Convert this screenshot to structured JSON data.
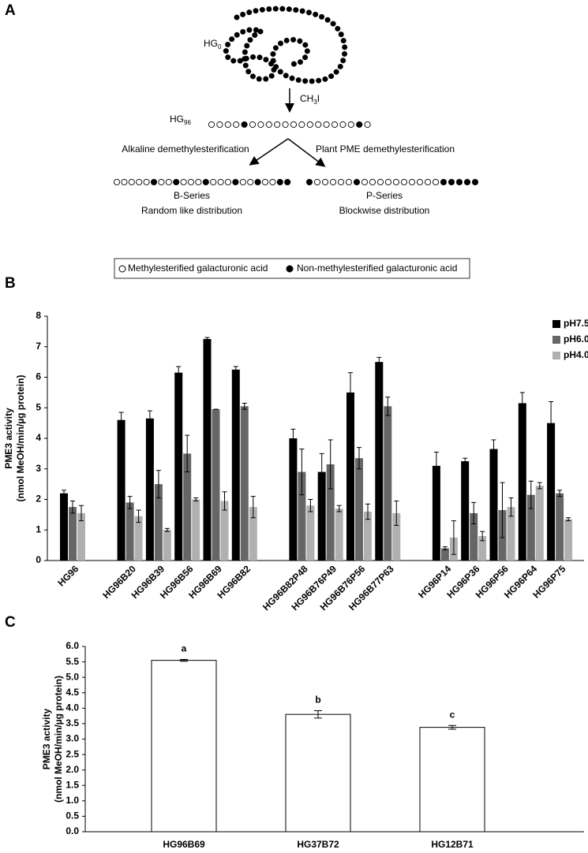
{
  "diagram": {
    "label": "A",
    "hg0": {
      "text": "HG",
      "sub": "0"
    },
    "reagent": {
      "text": "CH",
      "sub": "3",
      "after": "I"
    },
    "hg96": {
      "text": "HG",
      "sub": "96"
    },
    "left_route": "Alkaline demethylesterification",
    "right_route": "Plant PME demethylesterification",
    "left_series": "B-Series",
    "left_distribution": "Random like distribution",
    "right_series": "P-Series",
    "right_distribution": "Blockwise distribution",
    "legend_open": "Methylesterified galacturonic acid",
    "legend_filled": "Non-methylesterified galacturonic acid"
  },
  "chart_data": [
    {
      "type": "bar",
      "panel_label": "B",
      "ylabel": [
        "PME3 activity",
        "(nmol MeOH/min/µg  protein)"
      ],
      "categories": [
        "HG96",
        null,
        "HG96B20",
        "HG96B39",
        "HG96B56",
        "HG96B69",
        "HG96B82",
        null,
        "HG96B82P48",
        "HG96B76P49",
        "HG96B76P56",
        "HG96B77P63",
        null,
        "HG96P14",
        "HG96P36",
        "HG96P56",
        "HG96P64",
        "HG96P75"
      ],
      "series": [
        {
          "name": "pH7.5",
          "color": "#000000",
          "values": [
            2.2,
            null,
            4.6,
            4.65,
            6.15,
            7.25,
            6.25,
            null,
            4.0,
            2.9,
            5.5,
            6.5,
            null,
            3.1,
            3.25,
            3.65,
            5.15,
            4.5
          ],
          "errors": [
            0.1,
            null,
            0.25,
            0.25,
            0.2,
            0.05,
            0.1,
            null,
            0.3,
            0.6,
            0.65,
            0.15,
            null,
            0.45,
            0.1,
            0.3,
            0.35,
            0.7
          ]
        },
        {
          "name": "pH6.0",
          "color": "#666666",
          "values": [
            1.75,
            null,
            1.9,
            2.5,
            3.5,
            4.95,
            5.05,
            null,
            2.9,
            3.15,
            3.35,
            5.05,
            null,
            0.4,
            1.55,
            1.65,
            2.15,
            2.2
          ],
          "errors": [
            0.2,
            null,
            0.2,
            0.45,
            0.6,
            0.0,
            0.1,
            null,
            0.75,
            0.8,
            0.35,
            0.3,
            null,
            0.05,
            0.35,
            0.9,
            0.45,
            0.1
          ]
        },
        {
          "name": "pH4.0",
          "color": "#b0b0b0",
          "values": [
            1.55,
            null,
            1.45,
            1.0,
            2.0,
            1.95,
            1.75,
            null,
            1.8,
            1.7,
            1.6,
            1.55,
            null,
            0.75,
            0.8,
            1.75,
            2.45,
            1.35
          ],
          "errors": [
            0.25,
            null,
            0.2,
            0.05,
            0.05,
            0.3,
            0.35,
            null,
            0.2,
            0.1,
            0.25,
            0.4,
            null,
            0.55,
            0.15,
            0.3,
            0.1,
            0.05
          ]
        }
      ],
      "ylim": [
        0,
        8
      ],
      "yticks": [
        0,
        1,
        2,
        3,
        4,
        5,
        6,
        7,
        8
      ],
      "legend": "upper right"
    },
    {
      "type": "bar",
      "panel_label": "C",
      "ylabel": [
        "PME3 activity",
        "(nmol MeOH/min/µg protein)"
      ],
      "categories": [
        "HG96B69",
        "HG37B72",
        "HG12B71"
      ],
      "values": [
        5.55,
        3.8,
        3.38
      ],
      "errors": [
        0.03,
        0.12,
        0.06
      ],
      "annotations": [
        "a",
        "b",
        "c"
      ],
      "color": "#ffffff",
      "edgecolor": "#000000",
      "ylim": [
        0,
        6
      ],
      "yticks": [
        {
          "value": 0,
          "label": "0.0"
        },
        {
          "value": 0.5,
          "label": "0.5"
        },
        {
          "value": 1,
          "label": "1.0"
        },
        {
          "value": 1.5,
          "label": "1.5"
        },
        {
          "value": 2,
          "label": "2.0"
        },
        {
          "value": 2.5,
          "label": "2.5"
        },
        {
          "value": 3,
          "label": "3.0"
        },
        {
          "value": 3.5,
          "label": "3.5"
        },
        {
          "value": 4,
          "label": "4.0"
        },
        {
          "value": 4.5,
          "label": "4.5"
        },
        {
          "value": 5,
          "label": "5.0"
        },
        {
          "value": 5.5,
          "label": "5.5"
        },
        {
          "value": 6,
          "label": "6.0"
        }
      ]
    }
  ]
}
